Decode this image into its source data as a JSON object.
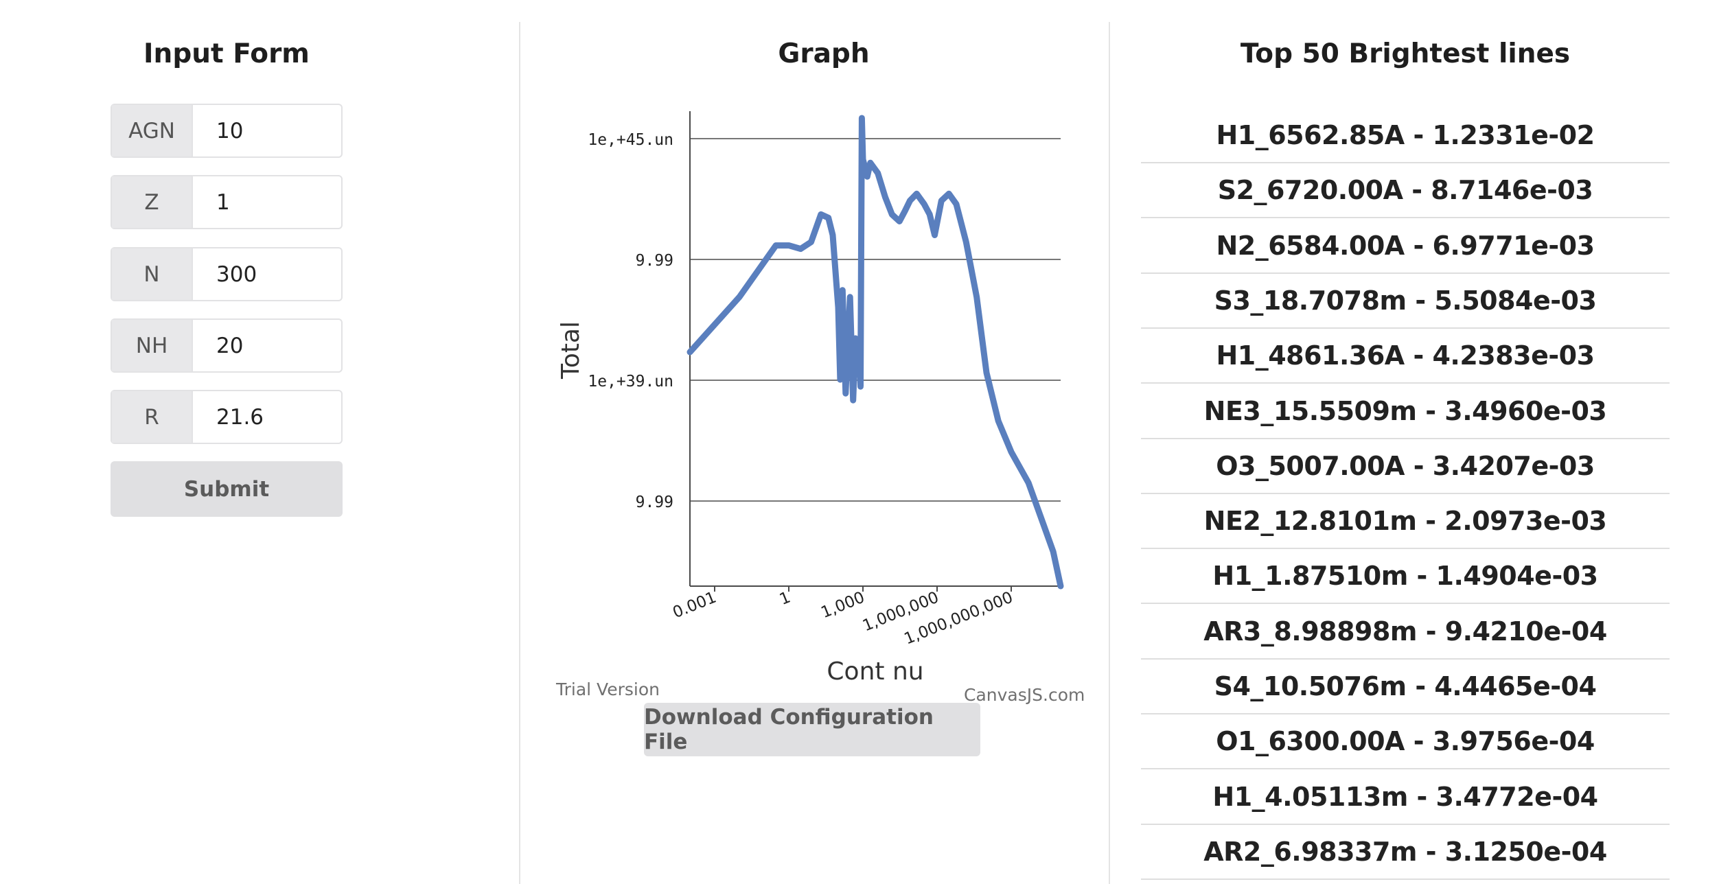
{
  "form": {
    "title": "Input Form",
    "fields": [
      {
        "label": "AGN",
        "value": "10"
      },
      {
        "label": "Z",
        "value": "1"
      },
      {
        "label": "N",
        "value": "300"
      },
      {
        "label": "NH",
        "value": "20"
      },
      {
        "label": "R",
        "value": "21.6"
      }
    ],
    "submit_label": "Submit"
  },
  "graph": {
    "title": "Graph",
    "trial_text": "Trial Version",
    "credit_text": "CanvasJS.com",
    "download_label": "Download Configuration File"
  },
  "lines": {
    "title": "Top 50 Brightest lines",
    "items": [
      "H1_6562.85A - 1.2331e-02",
      "S2_6720.00A - 8.7146e-03",
      "N2_6584.00A - 6.9771e-03",
      "S3_18.7078m - 5.5084e-03",
      "H1_4861.36A - 4.2383e-03",
      "NE3_15.5509m - 3.4960e-03",
      "O3_5007.00A - 3.4207e-03",
      "NE2_12.8101m - 2.0973e-03",
      "H1_1.87510m - 1.4904e-03",
      "AR3_8.98898m - 9.4210e-04",
      "S4_10.5076m - 4.4465e-04",
      "O1_6300.00A - 3.9756e-04",
      "H1_4.05113m - 3.4772e-04",
      "AR2_6.98337m - 3.1250e-04"
    ]
  },
  "chart_data": {
    "type": "line",
    "xlabel": "Cont nu",
    "ylabel": "Total",
    "x_scale": "log",
    "y_scale": "log",
    "xticks": [
      "0.001",
      "1",
      "1,000",
      "1,000,000",
      "1,000,000,000"
    ],
    "yticks": [
      "1e,+45.un",
      "9.99",
      "1e,+39.un",
      "9.99"
    ],
    "color": "#5a7fbe",
    "grid": "horizontal",
    "series": [
      {
        "x": [
          0.0001,
          0.01,
          0.3,
          1,
          3,
          8,
          20,
          40,
          60,
          100,
          120,
          150,
          200,
          300,
          400,
          500,
          600,
          700,
          800,
          900,
          1000,
          1500,
          2000,
          4000,
          8000,
          15000,
          30000,
          50000,
          80000,
          150000,
          300000,
          500000,
          800000,
          1500000,
          3000000,
          6000000,
          15000000,
          40000000,
          100000000,
          300000000,
          1000000000,
          5000000000,
          20000000000,
          50000000000,
          100000000000
        ],
        "y": [
          39.2,
          40.8,
          42.3,
          42.3,
          42.2,
          42.4,
          43.2,
          43.1,
          42.6,
          40.5,
          38.4,
          41.0,
          38.0,
          40.8,
          37.8,
          39.6,
          38.6,
          39.5,
          38.2,
          46.0,
          44.8,
          44.3,
          44.7,
          44.4,
          43.7,
          43.2,
          43.0,
          43.3,
          43.6,
          43.8,
          43.5,
          43.2,
          42.6,
          43.6,
          43.8,
          43.5,
          42.4,
          40.8,
          38.6,
          37.2,
          36.3,
          35.4,
          34.2,
          33.4,
          32.4
        ]
      }
    ]
  }
}
